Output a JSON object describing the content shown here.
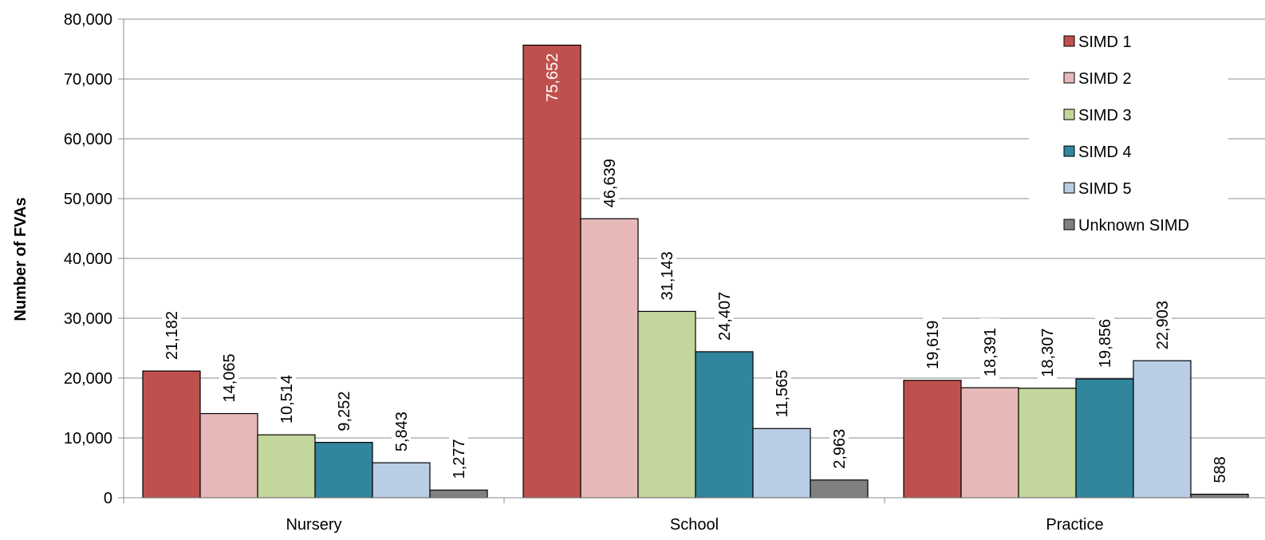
{
  "chart_data": {
    "type": "bar",
    "title": "",
    "xlabel": "",
    "ylabel": "Number of FVAs",
    "ylim": [
      0,
      80000
    ],
    "yticks": [
      0,
      10000,
      20000,
      30000,
      40000,
      50000,
      60000,
      70000,
      80000
    ],
    "ytick_labels": [
      "0",
      "10,000",
      "20,000",
      "30,000",
      "40,000",
      "50,000",
      "60,000",
      "70,000",
      "80,000"
    ],
    "grid": true,
    "legend_position": "top-right",
    "categories": [
      "Nursery",
      "School",
      "Practice"
    ],
    "series": [
      {
        "name": "SIMD 1",
        "color": "#C0504D",
        "values": [
          21182,
          75652,
          19619
        ],
        "labels": [
          "21,182",
          "75,652",
          "19,619"
        ]
      },
      {
        "name": "SIMD 2",
        "color": "#E6B9B8",
        "values": [
          14065,
          46639,
          18391
        ],
        "labels": [
          "14,065",
          "46,639",
          "18,391"
        ]
      },
      {
        "name": "SIMD 3",
        "color": "#C3D69B",
        "values": [
          10514,
          31143,
          18307
        ],
        "labels": [
          "10,514",
          "31,143",
          "18,307"
        ]
      },
      {
        "name": "SIMD 4",
        "color": "#31859C",
        "values": [
          9252,
          24407,
          19856
        ],
        "labels": [
          "9,252",
          "24,407",
          "19,856"
        ]
      },
      {
        "name": "SIMD 5",
        "color": "#B9CDE5",
        "values": [
          5843,
          11565,
          22903
        ],
        "labels": [
          "5,843",
          "11,565",
          "22,903"
        ]
      },
      {
        "name": "Unknown SIMD",
        "color": "#808080",
        "values": [
          1277,
          2963,
          588
        ],
        "labels": [
          "1,277",
          "2,963",
          "588"
        ]
      }
    ]
  }
}
